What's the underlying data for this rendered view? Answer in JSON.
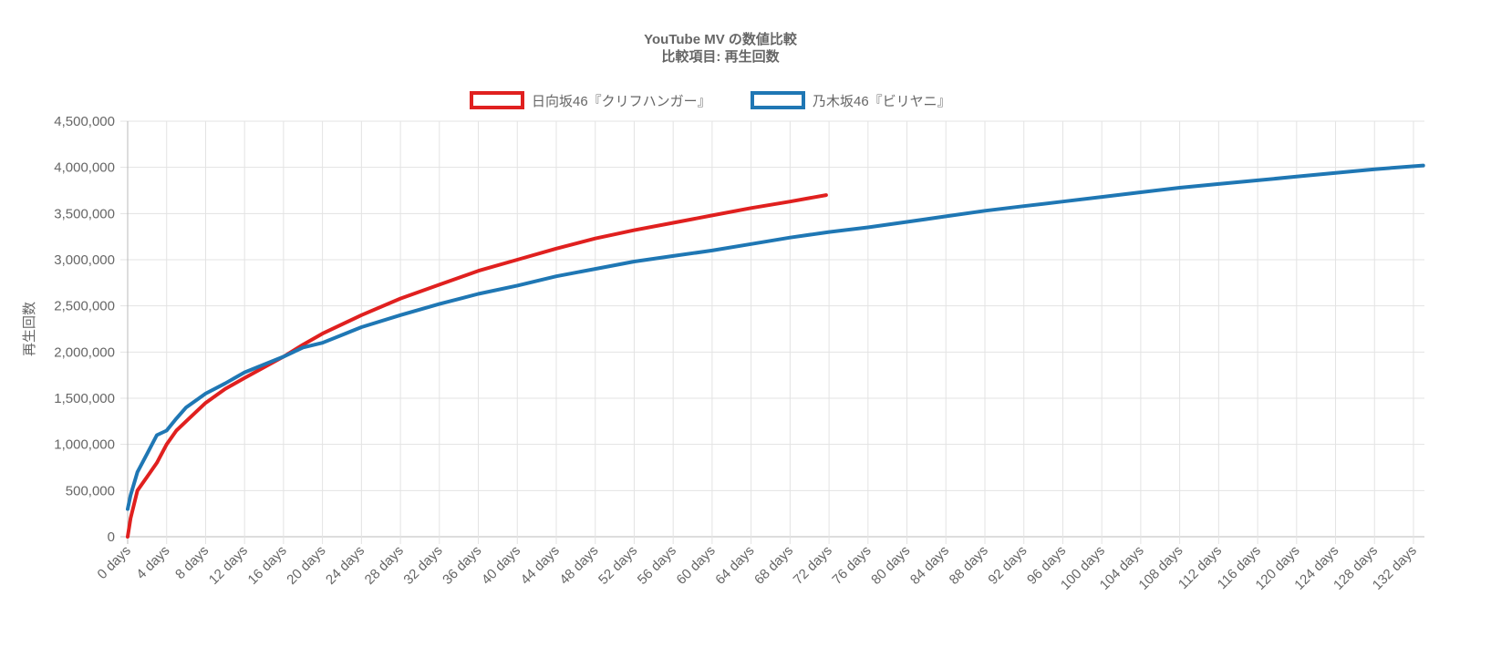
{
  "chart_data": {
    "type": "line",
    "title": [
      "YouTube MV の数値比較",
      "比較項目: 再生回数"
    ],
    "xlabel": "",
    "ylabel": "再生回数",
    "ylim": [
      0,
      4500000
    ],
    "xlim": [
      0,
      133
    ],
    "grid": true,
    "legend_position": "top-center",
    "x_ticks": [
      0,
      4,
      8,
      12,
      16,
      20,
      24,
      28,
      32,
      36,
      40,
      44,
      48,
      52,
      56,
      60,
      64,
      68,
      72,
      76,
      80,
      84,
      88,
      92,
      96,
      100,
      104,
      108,
      112,
      116,
      120,
      124,
      128,
      132
    ],
    "x_tick_suffix": " days",
    "y_ticks": [
      0,
      500000,
      1000000,
      1500000,
      2000000,
      2500000,
      3000000,
      3500000,
      4000000,
      4500000
    ],
    "series": [
      {
        "name": "日向坂46『クリフハンガー』",
        "color": "#e0201f",
        "x": [
          0,
          0.3,
          1,
          2,
          3,
          4,
          5,
          6,
          8,
          10,
          12,
          16,
          18,
          20,
          24,
          28,
          32,
          36,
          40,
          44,
          48,
          52,
          56,
          60,
          64,
          68,
          71.7
        ],
        "y": [
          0,
          200000,
          500000,
          650000,
          800000,
          1000000,
          1150000,
          1250000,
          1450000,
          1600000,
          1720000,
          1950000,
          2080000,
          2200000,
          2400000,
          2580000,
          2730000,
          2880000,
          3000000,
          3120000,
          3230000,
          3320000,
          3400000,
          3480000,
          3560000,
          3630000,
          3700000
        ]
      },
      {
        "name": "乃木坂46『ビリヤニ』",
        "color": "#1f77b4",
        "x": [
          0,
          0.3,
          1,
          2,
          3,
          4,
          5,
          6,
          8,
          10,
          12,
          16,
          18,
          20,
          24,
          28,
          32,
          36,
          40,
          44,
          48,
          52,
          56,
          60,
          64,
          68,
          72,
          76,
          80,
          84,
          88,
          92,
          96,
          100,
          104,
          108,
          112,
          116,
          120,
          124,
          128,
          133
        ],
        "y": [
          300000,
          450000,
          700000,
          900000,
          1100000,
          1150000,
          1280000,
          1400000,
          1550000,
          1660000,
          1780000,
          1950000,
          2050000,
          2100000,
          2270000,
          2400000,
          2520000,
          2630000,
          2720000,
          2820000,
          2900000,
          2980000,
          3040000,
          3100000,
          3170000,
          3240000,
          3300000,
          3350000,
          3410000,
          3470000,
          3530000,
          3580000,
          3630000,
          3680000,
          3730000,
          3780000,
          3820000,
          3860000,
          3900000,
          3940000,
          3980000,
          4020000
        ]
      }
    ]
  }
}
